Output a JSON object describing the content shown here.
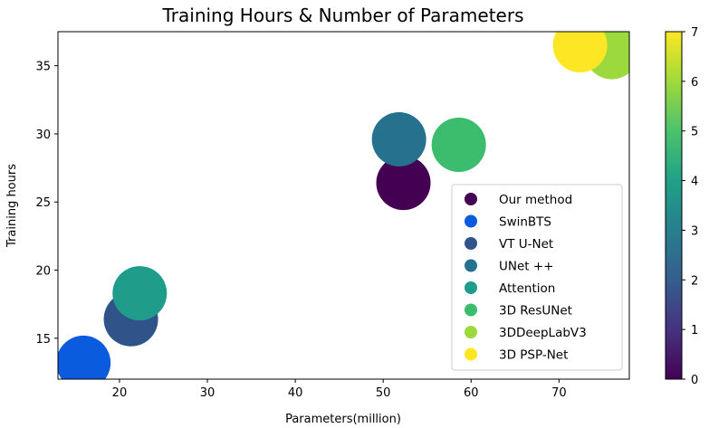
{
  "chart_data": {
    "type": "scatter",
    "title": "Training Hours & Number of Parameters",
    "xlabel": "Parameters(million)",
    "ylabel": "Training hours",
    "xlim": [
      13,
      78
    ],
    "ylim": [
      12,
      37.5
    ],
    "xticks": [
      "20",
      "30",
      "40",
      "50",
      "60",
      "70"
    ],
    "yticks": [
      "15",
      "20",
      "25",
      "30",
      "35"
    ],
    "colorbar": {
      "ticks": [
        "0",
        "1",
        "2",
        "3",
        "4",
        "5",
        "6",
        "7"
      ],
      "range": [
        0,
        7
      ],
      "colormap": "viridis"
    },
    "legend_position": "lower right",
    "grid": false,
    "series": [
      {
        "name": "Our method",
        "x": 52.3,
        "y": 26.4,
        "color_value": 0,
        "color": "#440154"
      },
      {
        "name": "SwinBTS",
        "x": 15.9,
        "y": 13.2,
        "color_value": 1,
        "color": "#0a5bde"
      },
      {
        "name": "VT U-Net",
        "x": 21.3,
        "y": 16.4,
        "color_value": 2,
        "color": "#30538a"
      },
      {
        "name": "UNet ++",
        "x": 51.8,
        "y": 29.6,
        "color_value": 3,
        "color": "#26718e"
      },
      {
        "name": "Attention",
        "x": 22.3,
        "y": 18.3,
        "color_value": 4,
        "color": "#1f9c8a"
      },
      {
        "name": "3D ResUNet",
        "x": 58.6,
        "y": 29.2,
        "color_value": 5,
        "color": "#3cbc6d"
      },
      {
        "name": "3DDeepLabV3",
        "x": 76.0,
        "y": 36.0,
        "color_value": 6,
        "color": "#9bd93c"
      },
      {
        "name": "3D PSP-Net",
        "x": 72.4,
        "y": 36.5,
        "color_value": 7,
        "color": "#fde725"
      }
    ]
  }
}
